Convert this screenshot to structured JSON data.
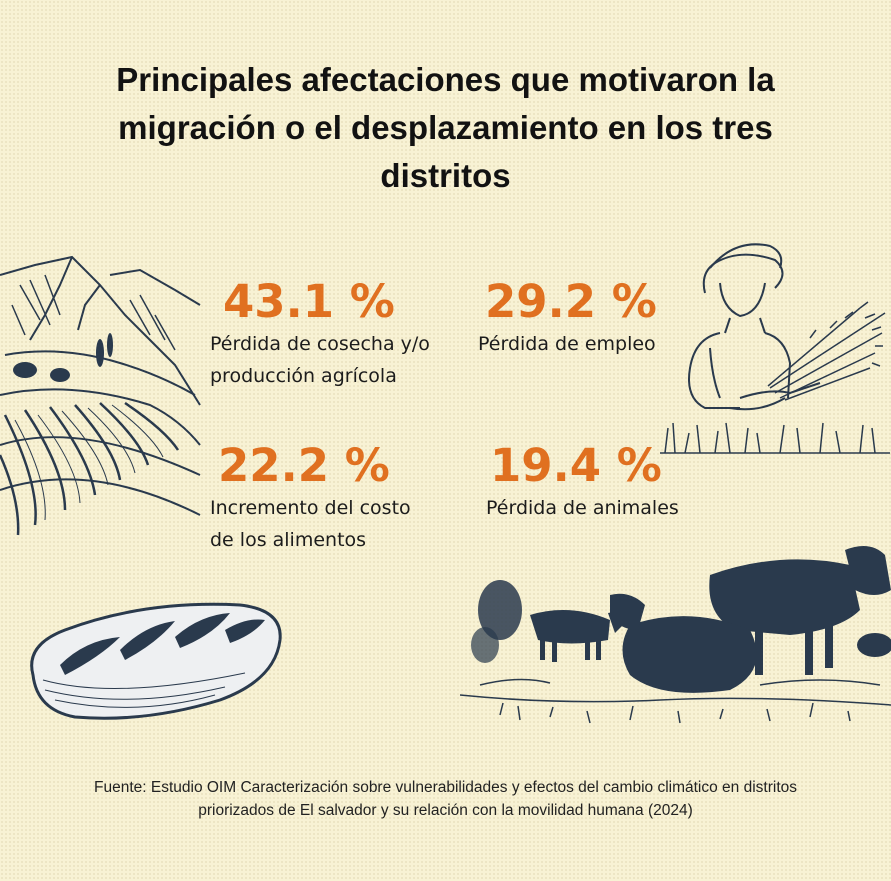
{
  "title": "Principales afectaciones que motivaron la migración o el desplazamiento en los tres distritos",
  "stats": [
    {
      "value": "43.1 %",
      "label_line1": "Pérdida de cosecha y/o",
      "label_line2": "producción agrícola"
    },
    {
      "value": "29.2 %",
      "label_line1": "Pérdida de empleo",
      "label_line2": ""
    },
    {
      "value": "22.2 %",
      "label_line1": "Incremento del costo",
      "label_line2": "de los alimentos"
    },
    {
      "value": "19.4 %",
      "label_line1": "Pérdida de animales",
      "label_line2": ""
    }
  ],
  "source": {
    "line1": "Fuente: Estudio OIM Caracterización sobre vulnerabilidades y efectos del cambio climático en distritos",
    "line2": "priorizados de El salvador y su relación con la movilidad humana (2024)"
  },
  "colors": {
    "accent": "#e07020",
    "background": "#f8f2d4",
    "ink": "#2a3a4d",
    "text": "#121212"
  },
  "illustrations": [
    "hills-fields-illustration",
    "farmer-with-wheat-illustration",
    "bread-loaf-illustration",
    "cattle-herd-illustration"
  ]
}
